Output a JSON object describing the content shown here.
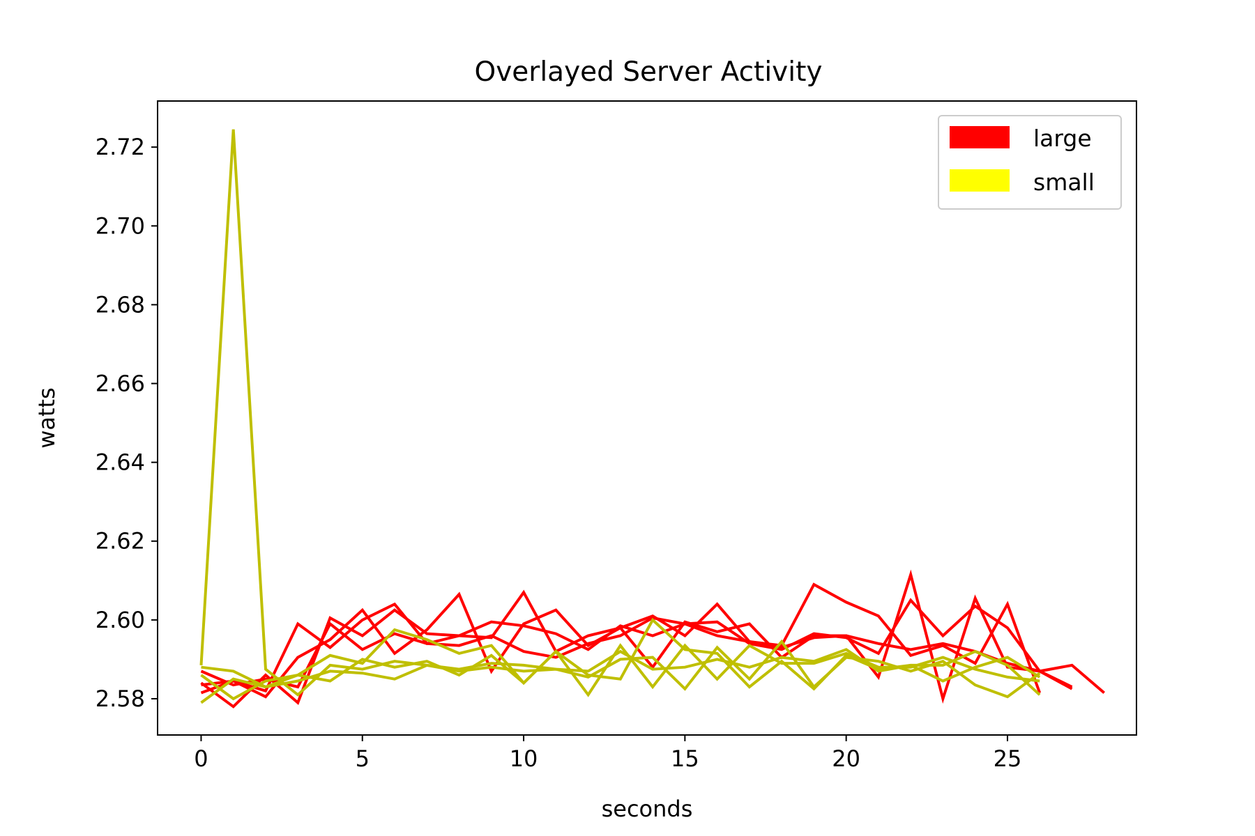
{
  "chart_data": {
    "type": "line",
    "title": "Overlayed Server Activity",
    "xlabel": "seconds",
    "ylabel": "watts",
    "xlim": [
      -1.35,
      29.0
    ],
    "ylim": [
      2.5708,
      2.7317
    ],
    "xticks": [
      0,
      5,
      10,
      15,
      20,
      25
    ],
    "yticks": [
      2.58,
      2.6,
      2.62,
      2.64,
      2.66,
      2.68,
      2.7,
      2.72
    ],
    "ytick_labels": [
      "2.58",
      "2.60",
      "2.62",
      "2.64",
      "2.66",
      "2.68",
      "2.70",
      "2.72"
    ],
    "grid": false,
    "legend": {
      "position": "top-right",
      "entries": [
        {
          "label": "large",
          "color": "#ff0000"
        },
        {
          "label": "small",
          "color": "#ffff00"
        }
      ]
    },
    "colors": {
      "large_line": "#ff0000",
      "small_line": "#bfbf00"
    },
    "series": [
      {
        "group": "large",
        "x": [
          0,
          1,
          2,
          3,
          4,
          5,
          6,
          7,
          8,
          9,
          10,
          11,
          12,
          13,
          14,
          15,
          16,
          17,
          18,
          19,
          20,
          21,
          22,
          23,
          24,
          25,
          26,
          27,
          28
        ],
        "y": [
          2.5835,
          2.5845,
          2.582,
          2.599,
          2.593,
          2.6,
          2.604,
          2.594,
          2.5935,
          2.596,
          2.592,
          2.5905,
          2.594,
          2.596,
          2.6005,
          2.599,
          2.596,
          2.5945,
          2.593,
          2.5955,
          2.596,
          2.594,
          2.5925,
          2.594,
          2.592,
          2.589,
          2.587,
          2.5885,
          2.5815
        ]
      },
      {
        "group": "large",
        "x": [
          0,
          1,
          2,
          3,
          4,
          5,
          6,
          7,
          8,
          9,
          10,
          11,
          12,
          13,
          14,
          15,
          16,
          17,
          18,
          19,
          20,
          21,
          22,
          23,
          24,
          25,
          26,
          27
        ],
        "y": [
          2.584,
          2.578,
          2.586,
          2.579,
          2.6005,
          2.596,
          2.6025,
          2.5965,
          2.596,
          2.5955,
          2.607,
          2.592,
          2.596,
          2.598,
          2.588,
          2.5995,
          2.597,
          2.599,
          2.5905,
          2.596,
          2.596,
          2.5855,
          2.6115,
          2.58,
          2.6055,
          2.588,
          2.587,
          2.583
        ]
      },
      {
        "group": "large",
        "x": [
          0,
          1,
          2,
          3,
          4,
          5,
          6,
          7,
          8,
          9,
          10,
          11,
          12,
          13,
          14,
          15,
          16,
          17,
          18,
          19,
          20,
          21,
          22,
          23,
          24,
          25,
          26
        ],
        "y": [
          2.5815,
          2.5845,
          2.5805,
          2.5905,
          2.595,
          2.6025,
          2.5915,
          2.5975,
          2.6065,
          2.587,
          2.599,
          2.6025,
          2.5935,
          2.598,
          2.601,
          2.596,
          2.604,
          2.5945,
          2.5935,
          2.609,
          2.6045,
          2.601,
          2.591,
          2.5935,
          2.589,
          2.604,
          2.5815
        ]
      },
      {
        "group": "large",
        "x": [
          0,
          1,
          2,
          3,
          4,
          5,
          6,
          7,
          8,
          9,
          10,
          11,
          12,
          13,
          14,
          15,
          16,
          17,
          18,
          19,
          20,
          21,
          22,
          23,
          24,
          25,
          26,
          27
        ],
        "y": [
          2.587,
          2.5835,
          2.585,
          2.583,
          2.599,
          2.5925,
          2.5965,
          2.594,
          2.596,
          2.5995,
          2.5985,
          2.5965,
          2.5925,
          2.5985,
          2.596,
          2.599,
          2.5995,
          2.594,
          2.5925,
          2.5965,
          2.5955,
          2.5915,
          2.605,
          2.596,
          2.6035,
          2.598,
          2.587,
          2.5825
        ]
      },
      {
        "group": "small",
        "x": [
          0,
          1,
          2,
          3,
          4,
          5,
          6,
          7,
          8,
          9,
          10,
          11,
          12,
          13,
          14,
          15,
          16,
          17,
          18,
          19,
          20,
          21,
          22,
          23,
          24,
          25,
          26
        ],
        "y": [
          2.5885,
          2.7245,
          2.5875,
          2.581,
          2.5885,
          2.5875,
          2.5895,
          2.5885,
          2.5875,
          2.589,
          2.5885,
          2.5875,
          2.587,
          2.592,
          2.5875,
          2.588,
          2.59,
          2.588,
          2.5905,
          2.5895,
          2.5925,
          2.587,
          2.5885,
          2.5885,
          2.592,
          2.5885,
          2.581
        ]
      },
      {
        "group": "small",
        "x": [
          0,
          1,
          2,
          3,
          4,
          5,
          6,
          7,
          8,
          9,
          10,
          11,
          12,
          13,
          14,
          15,
          16,
          17,
          18,
          19,
          20,
          21,
          22,
          23,
          24,
          25,
          26
        ],
        "y": [
          2.579,
          2.585,
          2.583,
          2.586,
          2.591,
          2.589,
          2.5975,
          2.595,
          2.5915,
          2.5935,
          2.584,
          2.592,
          2.581,
          2.5935,
          2.583,
          2.5935,
          2.585,
          2.5935,
          2.589,
          2.589,
          2.5915,
          2.588,
          2.588,
          2.5905,
          2.5875,
          2.5855,
          2.5845
        ]
      },
      {
        "group": "small",
        "x": [
          0,
          1,
          2,
          3,
          4,
          5,
          6,
          7,
          8,
          9,
          10,
          11,
          12,
          13,
          14,
          15,
          16,
          17,
          18,
          19,
          20,
          21,
          22,
          23,
          24,
          25,
          26
        ],
        "y": [
          2.586,
          2.58,
          2.5845,
          2.586,
          2.5845,
          2.59,
          2.588,
          2.5895,
          2.586,
          2.591,
          2.584,
          2.592,
          2.586,
          2.585,
          2.6,
          2.5925,
          2.5915,
          2.583,
          2.5895,
          2.5825,
          2.591,
          2.5875,
          2.5885,
          2.5845,
          2.588,
          2.5905,
          2.5855
        ]
      },
      {
        "group": "small",
        "x": [
          0,
          1,
          2,
          3,
          4,
          5,
          6,
          7,
          8,
          9,
          10,
          11,
          12,
          13,
          14,
          15,
          16,
          17,
          18,
          19,
          20,
          21,
          22,
          23,
          24,
          25,
          26
        ],
        "y": [
          2.588,
          2.587,
          2.583,
          2.5845,
          2.587,
          2.5865,
          2.585,
          2.5885,
          2.587,
          2.588,
          2.587,
          2.5875,
          2.5855,
          2.59,
          2.5905,
          2.5825,
          2.593,
          2.585,
          2.5945,
          2.583,
          2.5905,
          2.5895,
          2.587,
          2.5895,
          2.5835,
          2.5805,
          2.5865
        ]
      }
    ]
  }
}
